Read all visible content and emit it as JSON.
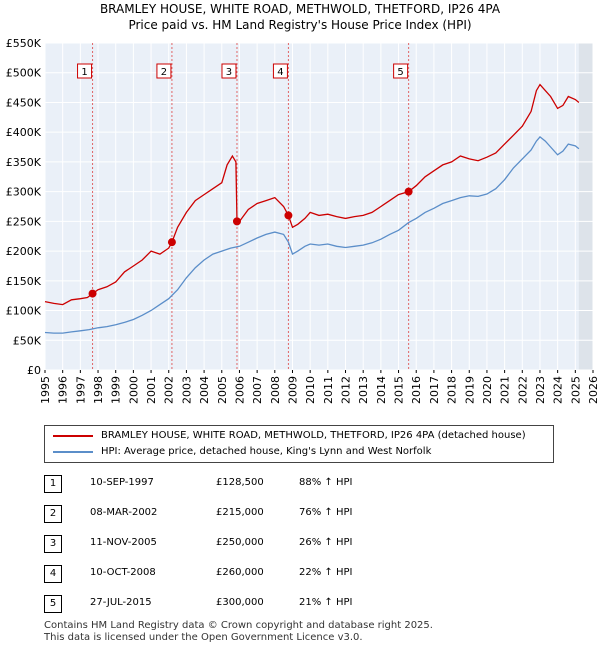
{
  "title": "BRAMLEY HOUSE, WHITE ROAD, METHWOLD, THETFORD, IP26 4PA",
  "subtitle": "Price paid vs. HM Land Registry's House Price Index (HPI)",
  "chart_data": {
    "type": "line",
    "xlim": [
      1995,
      2026
    ],
    "ylim": [
      0,
      550000
    ],
    "y_ticks": [
      0,
      50000,
      100000,
      150000,
      200000,
      250000,
      300000,
      350000,
      400000,
      450000,
      500000,
      550000
    ],
    "y_tick_labels": [
      "£0",
      "£50K",
      "£100K",
      "£150K",
      "£200K",
      "£250K",
      "£300K",
      "£350K",
      "£400K",
      "£450K",
      "£500K",
      "£550K"
    ],
    "x_ticks": [
      1995,
      1996,
      1997,
      1998,
      1999,
      2000,
      2001,
      2002,
      2003,
      2004,
      2005,
      2006,
      2007,
      2008,
      2009,
      2010,
      2011,
      2012,
      2013,
      2014,
      2015,
      2016,
      2017,
      2018,
      2019,
      2020,
      2021,
      2022,
      2023,
      2024,
      2025,
      2026
    ],
    "x_tick_labels": [
      "1995",
      "1996",
      "1997",
      "1998",
      "1999",
      "2000",
      "2001",
      "2002",
      "2003",
      "2004",
      "2005",
      "2006",
      "2007",
      "2008",
      "2009",
      "2010",
      "2011",
      "2012",
      "2013",
      "2014",
      "2015",
      "2016",
      "2017",
      "2018",
      "2019",
      "2020",
      "2021",
      "2022",
      "2023",
      "2024",
      "2025",
      "2026"
    ],
    "grid": true,
    "shaded_region_start": 2025.2,
    "series": [
      {
        "name": "BRAMLEY HOUSE, WHITE ROAD, METHWOLD, THETFORD, IP26 4PA (detached house)",
        "color": "#cc0000",
        "x": [
          1995.0,
          1995.5,
          1996.0,
          1996.5,
          1997.0,
          1997.4,
          1997.7,
          1998.0,
          1998.5,
          1999.0,
          1999.5,
          2000.0,
          2000.5,
          2001.0,
          2001.5,
          2002.0,
          2002.18,
          2002.5,
          2003.0,
          2003.5,
          2004.0,
          2004.5,
          2005.0,
          2005.3,
          2005.6,
          2005.8,
          2005.86,
          2006.0,
          2006.5,
          2007.0,
          2007.5,
          2008.0,
          2008.5,
          2008.77,
          2009.0,
          2009.3,
          2009.7,
          2010.0,
          2010.5,
          2011.0,
          2011.5,
          2012.0,
          2012.5,
          2013.0,
          2013.5,
          2014.0,
          2014.5,
          2015.0,
          2015.57,
          2016.0,
          2016.5,
          2017.0,
          2017.5,
          2018.0,
          2018.5,
          2019.0,
          2019.5,
          2020.0,
          2020.5,
          2021.0,
          2021.5,
          2022.0,
          2022.5,
          2022.8,
          2023.0,
          2023.3,
          2023.6,
          2024.0,
          2024.3,
          2024.6,
          2025.0,
          2025.2
        ],
        "values": [
          115000,
          112000,
          110000,
          118000,
          120000,
          122000,
          128500,
          135000,
          140000,
          148000,
          165000,
          175000,
          185000,
          200000,
          195000,
          205000,
          215000,
          240000,
          265000,
          285000,
          295000,
          305000,
          315000,
          345000,
          360000,
          350000,
          250000,
          250000,
          270000,
          280000,
          285000,
          290000,
          275000,
          260000,
          240000,
          245000,
          255000,
          265000,
          260000,
          262000,
          258000,
          255000,
          258000,
          260000,
          265000,
          275000,
          285000,
          295000,
          300000,
          310000,
          325000,
          335000,
          345000,
          350000,
          360000,
          355000,
          352000,
          358000,
          365000,
          380000,
          395000,
          410000,
          435000,
          470000,
          480000,
          470000,
          460000,
          440000,
          445000,
          460000,
          455000,
          450000
        ]
      },
      {
        "name": "HPI: Average price, detached house, King's Lynn and West Norfolk",
        "color": "#5b8ec9",
        "x": [
          1995.0,
          1995.5,
          1996.0,
          1996.5,
          1997.0,
          1997.5,
          1998.0,
          1998.5,
          1999.0,
          1999.5,
          2000.0,
          2000.5,
          2001.0,
          2001.5,
          2002.0,
          2002.5,
          2003.0,
          2003.5,
          2004.0,
          2004.5,
          2005.0,
          2005.5,
          2006.0,
          2006.5,
          2007.0,
          2007.5,
          2008.0,
          2008.5,
          2008.77,
          2009.0,
          2009.3,
          2009.7,
          2010.0,
          2010.5,
          2011.0,
          2011.5,
          2012.0,
          2012.5,
          2013.0,
          2013.5,
          2014.0,
          2014.5,
          2015.0,
          2015.57,
          2016.0,
          2016.5,
          2017.0,
          2017.5,
          2018.0,
          2018.5,
          2019.0,
          2019.5,
          2020.0,
          2020.5,
          2021.0,
          2021.5,
          2022.0,
          2022.5,
          2022.8,
          2023.0,
          2023.3,
          2023.6,
          2024.0,
          2024.3,
          2024.6,
          2025.0,
          2025.2
        ],
        "values": [
          63000,
          62000,
          62000,
          64000,
          66000,
          68000,
          71000,
          73000,
          76000,
          80000,
          85000,
          92000,
          100000,
          110000,
          120000,
          135000,
          155000,
          172000,
          185000,
          195000,
          200000,
          205000,
          208000,
          215000,
          222000,
          228000,
          232000,
          228000,
          215000,
          195000,
          200000,
          208000,
          212000,
          210000,
          212000,
          208000,
          206000,
          208000,
          210000,
          214000,
          220000,
          228000,
          235000,
          248000,
          255000,
          265000,
          272000,
          280000,
          285000,
          290000,
          293000,
          292000,
          296000,
          305000,
          320000,
          340000,
          355000,
          370000,
          385000,
          392000,
          385000,
          375000,
          362000,
          368000,
          380000,
          377000,
          372000
        ]
      }
    ],
    "sales": [
      {
        "label": "1",
        "x": 1997.69,
        "price": 128500,
        "date": "10-SEP-1997",
        "price_text": "£128,500",
        "hpi_text": "88% ↑ HPI"
      },
      {
        "label": "2",
        "x": 2002.18,
        "price": 215000,
        "date": "08-MAR-2002",
        "price_text": "£215,000",
        "hpi_text": "76% ↑ HPI"
      },
      {
        "label": "3",
        "x": 2005.86,
        "price": 250000,
        "date": "11-NOV-2005",
        "price_text": "£250,000",
        "hpi_text": "26% ↑ HPI"
      },
      {
        "label": "4",
        "x": 2008.77,
        "price": 260000,
        "date": "10-OCT-2008",
        "price_text": "£260,000",
        "hpi_text": "22% ↑ HPI"
      },
      {
        "label": "5",
        "x": 2015.57,
        "price": 300000,
        "date": "27-JUL-2015",
        "price_text": "£300,000",
        "hpi_text": "21% ↑ HPI"
      }
    ]
  },
  "legend": {
    "property_label": "BRAMLEY HOUSE, WHITE ROAD, METHWOLD, THETFORD, IP26 4PA (detached house)",
    "hpi_label": "HPI: Average price, detached house, King's Lynn and West Norfolk"
  },
  "footer": {
    "line1": "Contains HM Land Registry data © Crown copyright and database right 2025.",
    "line2": "This data is licensed under the Open Government Licence v3.0."
  }
}
